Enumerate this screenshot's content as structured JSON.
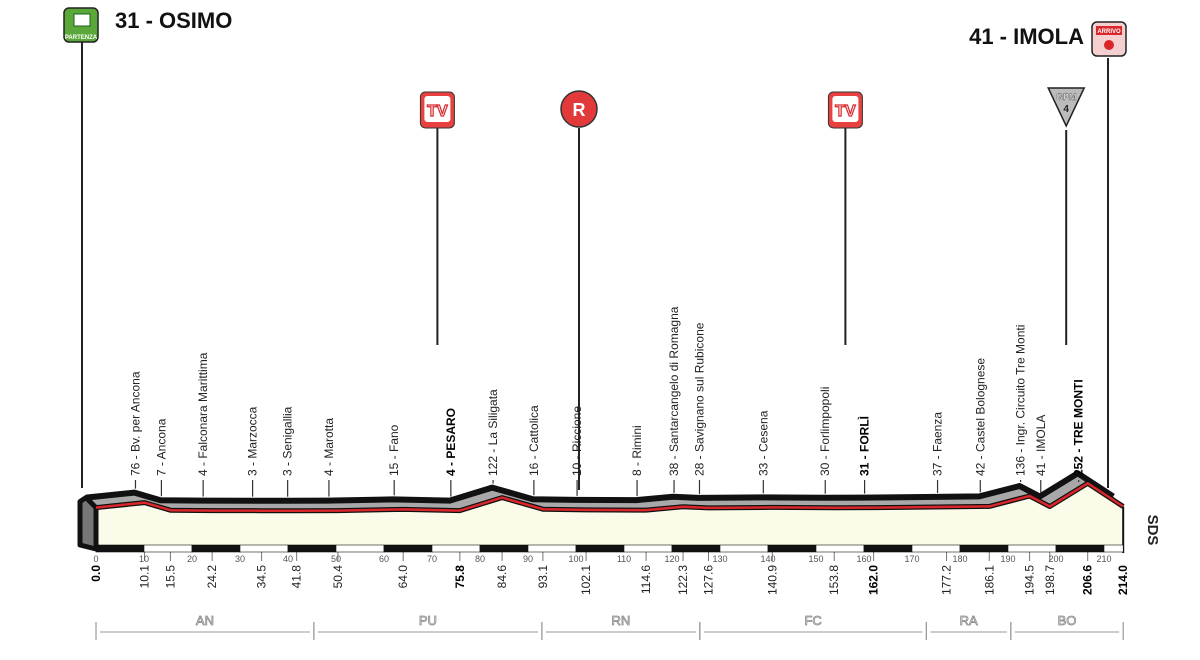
{
  "start": {
    "label": "31 - OSIMO",
    "icon": "partenza-flag-icon",
    "icon_text": "PARTENZA",
    "color": "#5aa83a"
  },
  "finish": {
    "label": "41 - IMOLA",
    "icon": "arrivo-finish-icon",
    "icon_text": "ARRIVO",
    "color": "#d9262a"
  },
  "markers": [
    {
      "type": "tv",
      "text": "TV",
      "km": 73.0
    },
    {
      "type": "intermediate",
      "text": "R",
      "km": 102.5
    },
    {
      "type": "tv",
      "text": "TV",
      "km": 158.0
    },
    {
      "type": "gpm",
      "text": "GPM",
      "category": "4",
      "km": 204.0
    }
  ],
  "credit": "SDS",
  "chart_data": {
    "type": "area",
    "title": "",
    "xlabel": "",
    "ylabel": "",
    "xlim": [
      0,
      214
    ],
    "x_ticks": [
      0,
      10,
      20,
      30,
      40,
      50,
      60,
      70,
      80,
      90,
      100,
      110,
      120,
      130,
      140,
      150,
      160,
      170,
      180,
      190,
      200,
      210
    ],
    "points": [
      {
        "km": "0.0",
        "x": 0.0,
        "elevation": 31,
        "name": "",
        "bold_km": true
      },
      {
        "km": "10.1",
        "x": 10.1,
        "elevation": 76,
        "name": "76 - Bv. per Ancona"
      },
      {
        "km": "15.5",
        "x": 15.5,
        "elevation": 7,
        "name": "7 - Ancona"
      },
      {
        "km": "24.2",
        "x": 24.2,
        "elevation": 4,
        "name": "4 - Falconara Marittima"
      },
      {
        "km": "34.5",
        "x": 34.5,
        "elevation": 3,
        "name": "3 - Marzocca"
      },
      {
        "km": "41.8",
        "x": 41.8,
        "elevation": 3,
        "name": "3 - Senigallia"
      },
      {
        "km": "50.4",
        "x": 50.4,
        "elevation": 4,
        "name": "4 - Marotta"
      },
      {
        "km": "64.0",
        "x": 64.0,
        "elevation": 15,
        "name": "15 - Fano"
      },
      {
        "km": "75.8",
        "x": 75.8,
        "elevation": 4,
        "name": "4 - PESARO",
        "bold": true
      },
      {
        "km": "84.6",
        "x": 84.6,
        "elevation": 122,
        "name": "122 - La Siligata"
      },
      {
        "km": "93.1",
        "x": 93.1,
        "elevation": 16,
        "name": "16 - Cattolica"
      },
      {
        "km": "102.1",
        "x": 102.1,
        "elevation": 10,
        "name": "10 - Riccione"
      },
      {
        "km": "114.6",
        "x": 114.6,
        "elevation": 8,
        "name": "8 - Rimini"
      },
      {
        "km": "122.3",
        "x": 122.3,
        "elevation": 38,
        "name": "38 - Santarcangelo di Romagna"
      },
      {
        "km": "127.6",
        "x": 127.6,
        "elevation": 28,
        "name": "28 - Savignano sul Rubicone"
      },
      {
        "km": "140.9",
        "x": 140.9,
        "elevation": 33,
        "name": "33 - Cesena"
      },
      {
        "km": "153.8",
        "x": 153.8,
        "elevation": 30,
        "name": "30 - Forlimpopoli"
      },
      {
        "km": "162.0",
        "x": 162.0,
        "elevation": 31,
        "name": "31 - FORLÌ",
        "bold": true
      },
      {
        "km": "177.2",
        "x": 177.2,
        "elevation": 37,
        "name": "37 - Faenza"
      },
      {
        "km": "186.1",
        "x": 186.1,
        "elevation": 42,
        "name": "42 - Castel Bolognese"
      },
      {
        "km": "194.5",
        "x": 194.5,
        "elevation": 136,
        "name": "136 - Ingr. Circuito Tre Monti"
      },
      {
        "km": "198.7",
        "x": 198.7,
        "elevation": 41,
        "name": "41 - IMOLA"
      },
      {
        "km": "206.6",
        "x": 206.6,
        "elevation": 252,
        "name": "252 - TRE MONTI",
        "bold": true
      },
      {
        "km": "214.0",
        "x": 214.0,
        "elevation": 41,
        "name": "",
        "bold_km": true
      }
    ],
    "provinces": [
      {
        "code": "AN",
        "from": 0,
        "to": 45.4
      },
      {
        "code": "PU",
        "from": 45.4,
        "to": 92.9
      },
      {
        "code": "RN",
        "from": 92.9,
        "to": 125.8
      },
      {
        "code": "FC",
        "from": 125.8,
        "to": 173.0
      },
      {
        "code": "RA",
        "from": 173.0,
        "to": 190.6
      },
      {
        "code": "BO",
        "from": 190.6,
        "to": 214.0
      }
    ],
    "colors": {
      "profile_top": "#111111",
      "profile_front": "#d9262a",
      "profile_side": "#a8a8a8",
      "ground": "#fbfbea"
    }
  }
}
